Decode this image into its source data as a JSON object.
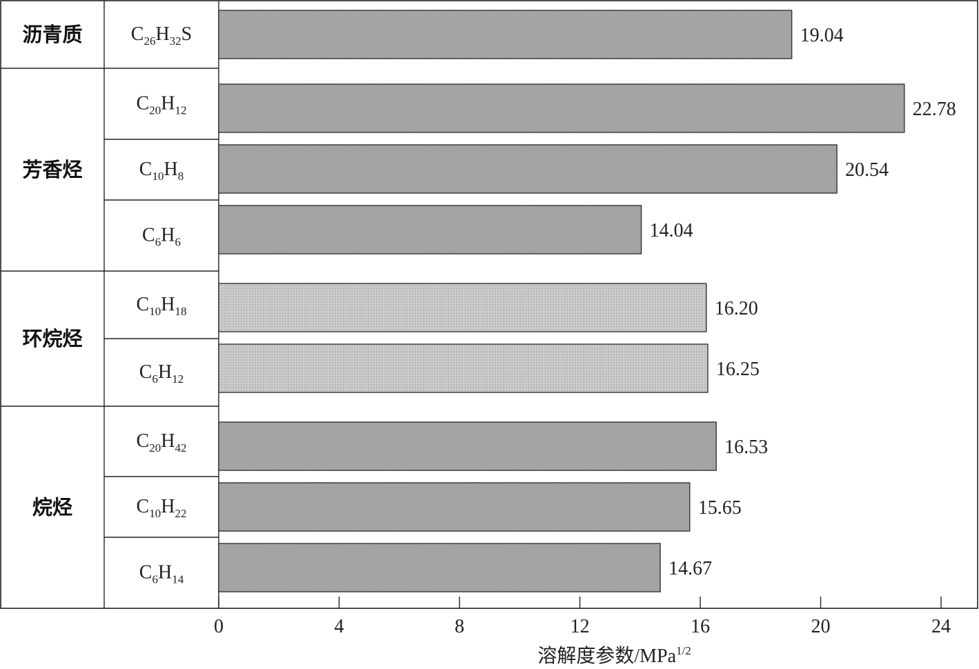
{
  "chart_data": {
    "type": "bar",
    "orientation": "horizontal",
    "xlabel": "溶解度参数/MPa",
    "xlabel_superscript": "1/2",
    "xlim": [
      0,
      24
    ],
    "xticks": [
      "0",
      "4",
      "8",
      "12",
      "16",
      "20",
      "24"
    ],
    "grid": false,
    "groups": [
      {
        "label": "沥青质",
        "color": "#ababab",
        "items": [
          {
            "formula": [
              [
                "C",
                "26"
              ],
              [
                "H",
                "32"
              ],
              [
                "S",
                ""
              ]
            ],
            "value": 19.04,
            "label": "19.04"
          }
        ]
      },
      {
        "label": "芳香烃",
        "color": "#ababab",
        "items": [
          {
            "formula": [
              [
                "C",
                "20"
              ],
              [
                "H",
                "12"
              ]
            ],
            "value": 22.78,
            "label": "22.78"
          },
          {
            "formula": [
              [
                "C",
                "10"
              ],
              [
                "H",
                "8"
              ]
            ],
            "value": 20.54,
            "label": "20.54"
          },
          {
            "formula": [
              [
                "C",
                "6"
              ],
              [
                "H",
                "6"
              ]
            ],
            "value": 14.04,
            "label": "14.04"
          }
        ]
      },
      {
        "label": "环烷烃",
        "color": "#c6c6c6",
        "items": [
          {
            "formula": [
              [
                "C",
                "10"
              ],
              [
                "H",
                "18"
              ]
            ],
            "value": 16.2,
            "label": "16.20"
          },
          {
            "formula": [
              [
                "C",
                "6"
              ],
              [
                "H",
                "12"
              ]
            ],
            "value": 16.25,
            "label": "16.25"
          }
        ]
      },
      {
        "label": "烷烃",
        "color": "#ababab",
        "items": [
          {
            "formula": [
              [
                "C",
                "20"
              ],
              [
                "H",
                "42"
              ]
            ],
            "value": 16.53,
            "label": "16.53"
          },
          {
            "formula": [
              [
                "C",
                "10"
              ],
              [
                "H",
                "22"
              ]
            ],
            "value": 15.65,
            "label": "15.65"
          },
          {
            "formula": [
              [
                "C",
                "6"
              ],
              [
                "H",
                "14"
              ]
            ],
            "value": 14.67,
            "label": "14.67"
          }
        ]
      }
    ]
  }
}
